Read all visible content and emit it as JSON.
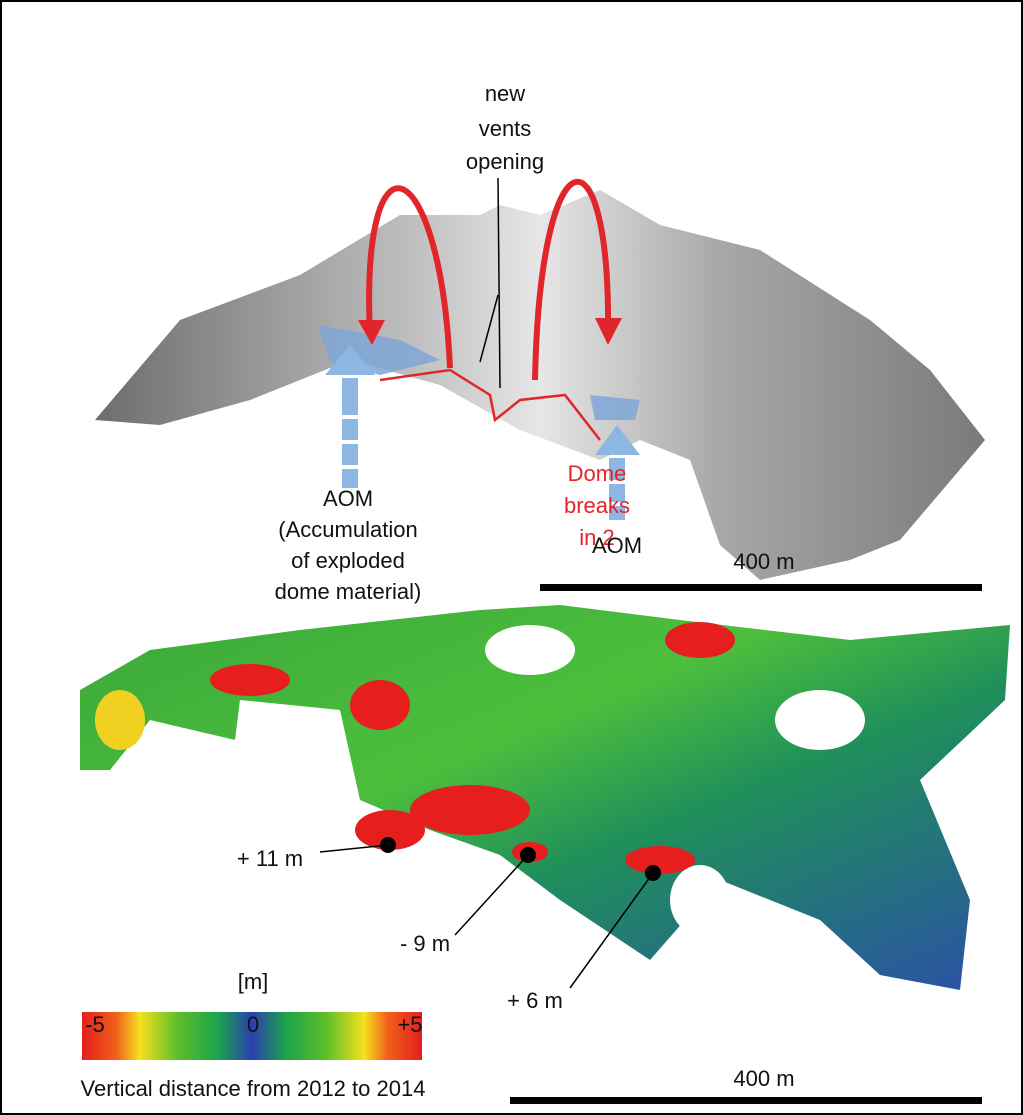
{
  "top_panel": {
    "vents_label": [
      "new",
      "vents",
      "opening"
    ],
    "aom_left": [
      "AOM",
      "(Accumulation",
      "of exploded",
      "dome material)"
    ],
    "dome_label": [
      "Dome",
      "breaks",
      "in 2"
    ],
    "aom_right": "AOM",
    "scale_label": "400 m"
  },
  "bottom_panel": {
    "annotations": [
      "+ 11 m",
      "- 9 m",
      "+ 6 m"
    ],
    "colorbar": {
      "unit": "[m]",
      "ticks": [
        "-5",
        "0",
        "+5"
      ],
      "caption": "Vertical distance from 2012 to 2014"
    },
    "scale_label": "400 m"
  }
}
